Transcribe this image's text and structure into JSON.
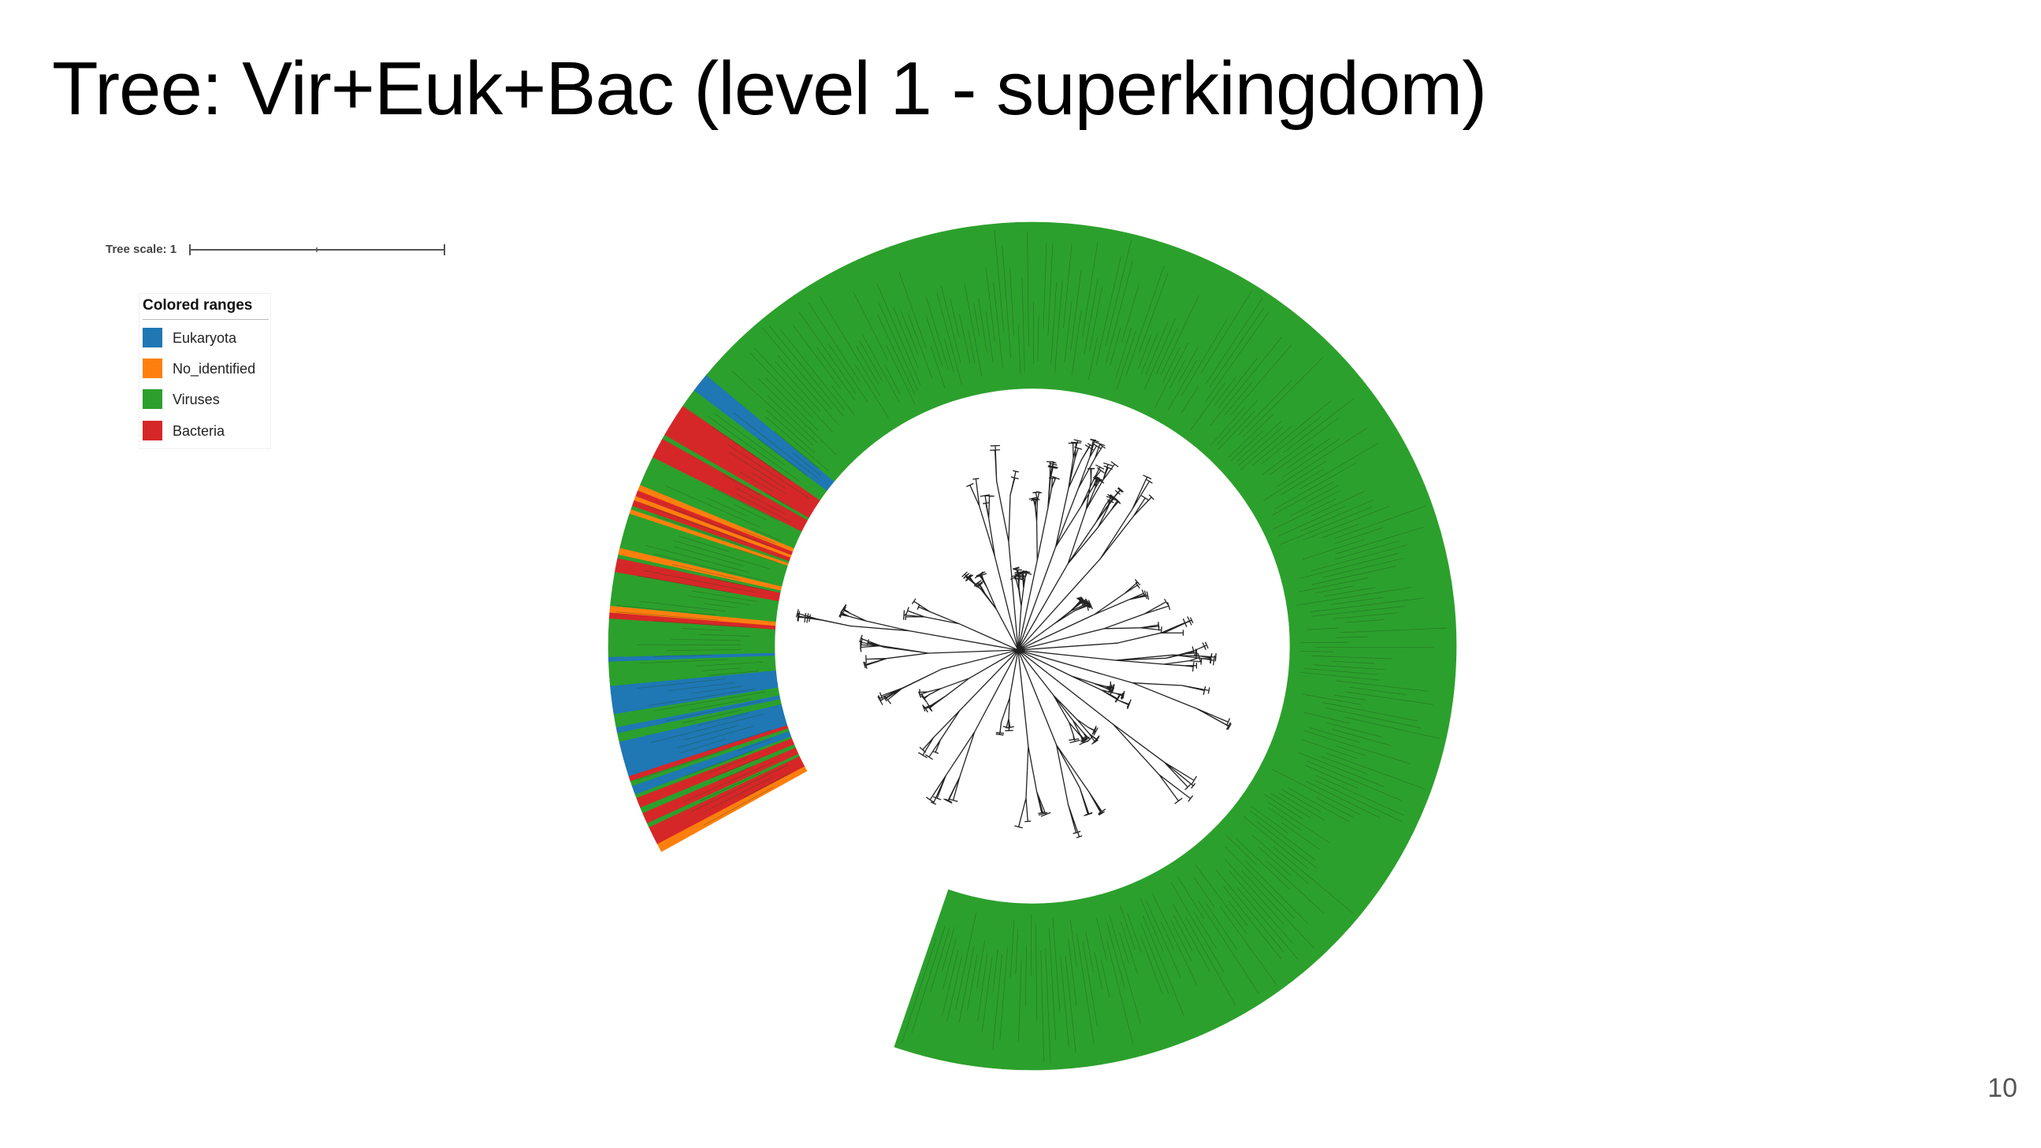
{
  "slide": {
    "title": "Tree: Vir+Euk+Bac (level 1 - superkingdom)",
    "page_number": "10"
  },
  "tree_scale": {
    "label": "Tree scale: 1"
  },
  "legend": {
    "title": "Colored ranges",
    "items": [
      {
        "label": "Eukaryota",
        "color": "#1f77b4"
      },
      {
        "label": "No_identified",
        "color": "#ff7f0e"
      },
      {
        "label": "Viruses",
        "color": "#2ca02c"
      },
      {
        "label": "Bacteria",
        "color": "#d62728"
      }
    ]
  },
  "tree": {
    "layout": "circular",
    "colors": {
      "Eukaryota": "#1f77b4",
      "No_identified": "#ff7f0e",
      "Viruses": "#2ca02c",
      "Bacteria": "#d62728",
      "branch": "#222222"
    },
    "ranges": [
      [
        "No_identified",
        1.2
      ],
      [
        "Bacteria",
        2.5
      ],
      [
        "Viruses",
        0.6
      ],
      [
        "Bacteria",
        1.5
      ],
      [
        "Viruses",
        0.8
      ],
      [
        "Bacteria",
        1.4
      ],
      [
        "Viruses",
        0.5
      ],
      [
        "Eukaryota",
        1.2
      ],
      [
        "Viruses",
        0.7
      ],
      [
        "Bacteria",
        0.7
      ],
      [
        "Eukaryota",
        4.8
      ],
      [
        "Viruses",
        1.2
      ],
      [
        "Eukaryota",
        0.8
      ],
      [
        "Viruses",
        1.8
      ],
      [
        "Eukaryota",
        3.8
      ],
      [
        "Viruses",
        3.3
      ],
      [
        "Eukaryota",
        0.6
      ],
      [
        "Viruses",
        5.2
      ],
      [
        "Bacteria",
        0.8
      ],
      [
        "No_identified",
        0.9
      ],
      [
        "Viruses",
        4.6
      ],
      [
        "Bacteria",
        1.9
      ],
      [
        "Viruses",
        0.5
      ],
      [
        "No_identified",
        0.9
      ],
      [
        "Viruses",
        4.8
      ],
      [
        "No_identified",
        0.6
      ],
      [
        "Viruses",
        0.5
      ],
      [
        "Bacteria",
        0.8
      ],
      [
        "No_identified",
        0.6
      ],
      [
        "Bacteria",
        0.8
      ],
      [
        "No_identified",
        0.8
      ],
      [
        "Viruses",
        4.1
      ],
      [
        "Bacteria",
        2.8
      ],
      [
        "Viruses",
        0.6
      ],
      [
        "Bacteria",
        4.6
      ],
      [
        "Viruses",
        2.6
      ],
      [
        "Eukaryota",
        2.6
      ],
      [
        "Viruses",
        248
      ]
    ]
  }
}
